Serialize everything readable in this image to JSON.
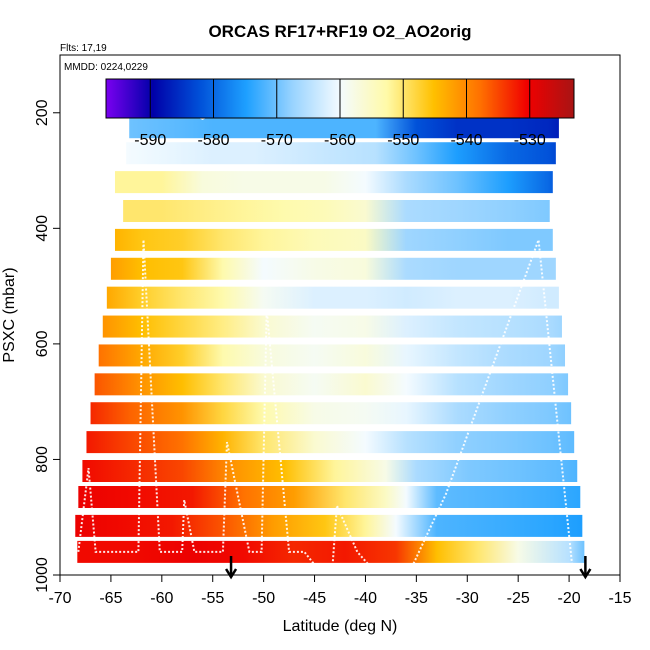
{
  "chart_data": {
    "type": "heatmap",
    "title": "ORCAS RF17+RF19 O2_AO2orig",
    "subtitle_flights": "Flts: 17,19",
    "subtitle_dates": "MMDD: 0224,0229",
    "xlabel": "Latitude (deg N)",
    "ylabel": "PSXC (mbar)",
    "xlim": [
      -70,
      -15
    ],
    "ylim": [
      1000,
      100
    ],
    "x_ticks": [
      -70,
      -65,
      -60,
      -55,
      -50,
      -45,
      -40,
      -35,
      -30,
      -25,
      -20,
      -15
    ],
    "y_ticks": [
      200,
      400,
      600,
      800,
      1000
    ],
    "colorbar": {
      "range": [
        -597,
        -523
      ],
      "ticks": [
        -590,
        -580,
        -570,
        -560,
        -550,
        -540,
        -530
      ],
      "colors": [
        "#7a00f0",
        "#0000a8",
        "#0050d8",
        "#1ea0ff",
        "#9ad4ff",
        "#f4fbff",
        "#fffaa8",
        "#ffc000",
        "#ff7000",
        "#f00000",
        "#a81414"
      ]
    },
    "bands": [
      {
        "p": 960,
        "lat_min": -68.3,
        "lat_max": -18.5,
        "values": [
          [
            -68.3,
            -531
          ],
          [
            -63,
            -531
          ],
          [
            -57,
            -530
          ],
          [
            -52,
            -531
          ],
          [
            -47,
            -533
          ],
          [
            -42,
            -532
          ],
          [
            -37,
            -534
          ],
          [
            -33,
            -545
          ],
          [
            -29,
            -550
          ],
          [
            -25,
            -558
          ],
          [
            -20,
            -565
          ],
          [
            -18.5,
            -570
          ]
        ]
      },
      {
        "p": 915,
        "lat_min": -68.5,
        "lat_max": -18.7,
        "values": [
          [
            -68.5,
            -530
          ],
          [
            -64,
            -531
          ],
          [
            -59,
            -532
          ],
          [
            -54,
            -536
          ],
          [
            -49,
            -542
          ],
          [
            -44,
            -546
          ],
          [
            -40,
            -552
          ],
          [
            -37,
            -560
          ],
          [
            -33,
            -572
          ],
          [
            -27,
            -573
          ],
          [
            -22,
            -574
          ],
          [
            -18.7,
            -575
          ]
        ]
      },
      {
        "p": 865,
        "lat_min": -68.2,
        "lat_max": -18.9,
        "values": [
          [
            -68.2,
            -530
          ],
          [
            -63,
            -531
          ],
          [
            -57,
            -532
          ],
          [
            -52,
            -538
          ],
          [
            -47,
            -542
          ],
          [
            -42,
            -550
          ],
          [
            -38,
            -555
          ],
          [
            -36,
            -560
          ],
          [
            -33,
            -571
          ],
          [
            -27,
            -572
          ],
          [
            -22,
            -573
          ],
          [
            -18.9,
            -574
          ]
        ]
      },
      {
        "p": 820,
        "lat_min": -67.8,
        "lat_max": -19.2,
        "values": [
          [
            -67.8,
            -531
          ],
          [
            -63,
            -533
          ],
          [
            -58,
            -535
          ],
          [
            -53,
            -541
          ],
          [
            -48,
            -545
          ],
          [
            -43,
            -552
          ],
          [
            -38,
            -558
          ],
          [
            -35,
            -566
          ],
          [
            -30,
            -569
          ],
          [
            -25,
            -570
          ],
          [
            -21,
            -571
          ],
          [
            -19.2,
            -572
          ]
        ]
      },
      {
        "p": 770,
        "lat_min": -67.4,
        "lat_max": -19.5,
        "values": [
          [
            -67.4,
            -532
          ],
          [
            -63,
            -535
          ],
          [
            -58,
            -538
          ],
          [
            -54,
            -544
          ],
          [
            -50,
            -550
          ],
          [
            -45,
            -556
          ],
          [
            -40,
            -560
          ],
          [
            -36,
            -565
          ],
          [
            -31,
            -568
          ],
          [
            -26,
            -569
          ],
          [
            -22,
            -570
          ],
          [
            -19.5,
            -571
          ]
        ]
      },
      {
        "p": 720,
        "lat_min": -67.0,
        "lat_max": -19.8,
        "values": [
          [
            -67,
            -533
          ],
          [
            -63,
            -537
          ],
          [
            -58,
            -541
          ],
          [
            -54,
            -548
          ],
          [
            -50,
            -553
          ],
          [
            -45,
            -558
          ],
          [
            -40,
            -559
          ],
          [
            -36,
            -561
          ],
          [
            -31,
            -566
          ],
          [
            -26,
            -568
          ],
          [
            -22,
            -569
          ],
          [
            -19.8,
            -570
          ]
        ]
      },
      {
        "p": 670,
        "lat_min": -66.6,
        "lat_max": -20.1,
        "values": [
          [
            -66.6,
            -536
          ],
          [
            -62,
            -541
          ],
          [
            -58,
            -545
          ],
          [
            -54,
            -550
          ],
          [
            -50,
            -556
          ],
          [
            -45,
            -559
          ],
          [
            -40,
            -556
          ],
          [
            -36,
            -560
          ],
          [
            -31,
            -565
          ],
          [
            -26,
            -567
          ],
          [
            -22,
            -568
          ],
          [
            -20.1,
            -569
          ]
        ]
      },
      {
        "p": 620,
        "lat_min": -66.2,
        "lat_max": -20.4,
        "values": [
          [
            -66.2,
            -538
          ],
          [
            -62,
            -543
          ],
          [
            -58,
            -547
          ],
          [
            -54,
            -553
          ],
          [
            -50,
            -557
          ],
          [
            -45,
            -559
          ],
          [
            -40,
            -557
          ],
          [
            -36,
            -561
          ],
          [
            -31,
            -564
          ],
          [
            -26,
            -566
          ],
          [
            -22,
            -567
          ],
          [
            -20.4,
            -568
          ]
        ]
      },
      {
        "p": 570,
        "lat_min": -65.8,
        "lat_max": -20.7,
        "values": [
          [
            -65.8,
            -541
          ],
          [
            -62,
            -545
          ],
          [
            -58,
            -548
          ],
          [
            -54,
            -551
          ],
          [
            -50,
            -556
          ],
          [
            -45,
            -559
          ],
          [
            -40,
            -558
          ],
          [
            -36,
            -562
          ],
          [
            -31,
            -564
          ],
          [
            -26,
            -565
          ],
          [
            -22,
            -566
          ],
          [
            -20.7,
            -567
          ]
        ]
      },
      {
        "p": 520,
        "lat_min": -65.4,
        "lat_max": -21.0,
        "values": [
          [
            -65.4,
            -543
          ],
          [
            -62,
            -547
          ],
          [
            -58,
            -550
          ],
          [
            -54,
            -553
          ],
          [
            -50,
            -559
          ],
          [
            -45,
            -562
          ],
          [
            -40,
            -562
          ],
          [
            -36,
            -563
          ],
          [
            -31,
            -562
          ],
          [
            -26,
            -562
          ],
          [
            -22,
            -563
          ],
          [
            -21,
            -563
          ]
        ]
      },
      {
        "p": 470,
        "lat_min": -65.0,
        "lat_max": -21.3,
        "values": [
          [
            -65,
            -542
          ],
          [
            -62,
            -545
          ],
          [
            -58,
            -546
          ],
          [
            -54,
            -553
          ],
          [
            -50,
            -560
          ],
          [
            -45,
            -558
          ],
          [
            -40,
            -557
          ],
          [
            -36,
            -566
          ],
          [
            -31,
            -567
          ],
          [
            -26,
            -567
          ],
          [
            -22,
            -567
          ],
          [
            -21.3,
            -567
          ]
        ]
      },
      {
        "p": 420,
        "lat_min": -64.6,
        "lat_max": -21.6,
        "values": [
          [
            -64.6,
            -544
          ],
          [
            -62,
            -546
          ],
          [
            -58,
            -547
          ],
          [
            -54,
            -550
          ],
          [
            -50,
            -552
          ],
          [
            -45,
            -554
          ],
          [
            -40,
            -555
          ],
          [
            -36,
            -567
          ],
          [
            -31,
            -568
          ],
          [
            -26,
            -569
          ],
          [
            -22,
            -569
          ],
          [
            -21.6,
            -569
          ]
        ]
      },
      {
        "p": 370,
        "lat_min": -63.8,
        "lat_max": -21.9,
        "values": [
          [
            -63.8,
            -550
          ],
          [
            -60,
            -550
          ],
          [
            -56,
            -551
          ],
          [
            -52,
            -552
          ],
          [
            -48,
            -553
          ],
          [
            -44,
            -554
          ],
          [
            -40,
            -556
          ],
          [
            -36,
            -566
          ],
          [
            -31,
            -567
          ],
          [
            -26,
            -568
          ],
          [
            -22,
            -569
          ],
          [
            -21.9,
            -569
          ]
        ]
      },
      {
        "p": 320,
        "lat_min": -64.6,
        "lat_max": -21.6,
        "values": [
          [
            -64.6,
            -552
          ],
          [
            -60,
            -552
          ],
          [
            -56,
            -557
          ],
          [
            -52,
            -558
          ],
          [
            -48,
            -558
          ],
          [
            -44,
            -558
          ],
          [
            -40,
            -560
          ],
          [
            -36,
            -566
          ],
          [
            -31,
            -570
          ],
          [
            -26,
            -575
          ],
          [
            -22,
            -580
          ],
          [
            -21.6,
            -581
          ]
        ]
      },
      {
        "p": 270,
        "lat_min": -63.5,
        "lat_max": -21.3,
        "values": [
          [
            -63.5,
            -560
          ],
          [
            -59,
            -561
          ],
          [
            -55,
            -562
          ],
          [
            -51,
            -562
          ],
          [
            -47,
            -563
          ],
          [
            -43,
            -564
          ],
          [
            -39,
            -565
          ],
          [
            -35,
            -570
          ],
          [
            -31,
            -575
          ],
          [
            -26,
            -580
          ],
          [
            -22,
            -582
          ],
          [
            -21.3,
            -583
          ]
        ]
      },
      {
        "p": 225,
        "lat_min": -63.2,
        "lat_max": -21.0,
        "values": [
          [
            -63.2,
            -570
          ],
          [
            -59,
            -571
          ],
          [
            -55,
            -572
          ],
          [
            -51,
            -572
          ],
          [
            -47,
            -572
          ],
          [
            -43,
            -572
          ],
          [
            -39,
            -572
          ],
          [
            -35,
            -582
          ],
          [
            -31,
            -585
          ],
          [
            -26,
            -585
          ],
          [
            -22,
            -586
          ],
          [
            -21,
            -587
          ]
        ]
      },
      {
        "p": 185,
        "lat_min": -62.5,
        "lat_max": -21.5,
        "values": [
          [
            -62.5,
            -570
          ],
          [
            -58,
            -574
          ],
          [
            -56,
            -580
          ],
          [
            -54,
            -588
          ],
          [
            -52,
            -576
          ],
          [
            -48,
            -573
          ],
          [
            -44,
            -572
          ],
          [
            -40,
            -572
          ],
          [
            -36,
            -575
          ],
          [
            -32,
            -588
          ],
          [
            -27,
            -589
          ],
          [
            -24,
            -590
          ],
          [
            -22,
            -593
          ],
          [
            -21.5,
            -596
          ]
        ]
      }
    ],
    "band_half_heights": [
      22,
      22,
      22,
      22,
      22,
      22,
      22,
      22,
      22,
      22,
      22,
      22,
      22,
      22,
      22,
      22,
      22
    ],
    "track_lat": [
      -68.2,
      -67.2,
      -66.5,
      -65.2,
      -62.3,
      -61.8,
      -60.2,
      -59.5,
      -58,
      -57.8,
      -56.8,
      -55.7,
      -54.5,
      -54,
      -53.6,
      -51.4,
      -50.2,
      -49.7,
      -47.5,
      -46,
      -44.2,
      -43.3,
      -42.8,
      -40.8,
      -38.8,
      -38.2,
      -36.4,
      -35.8,
      -32.1,
      -23,
      -19.6
    ],
    "track_p": [
      960,
      815,
      960,
      960,
      960,
      420,
      960,
      960,
      960,
      870,
      960,
      960,
      960,
      960,
      770,
      960,
      960,
      540,
      960,
      960,
      1000,
      1000,
      880,
      960,
      1000,
      1000,
      1000,
      1000,
      860,
      420,
      1000
    ],
    "track_top": [
      [
        -62.3,
        190
      ],
      [
        -60,
        190
      ],
      [
        -58,
        190
      ],
      [
        -56,
        210
      ],
      [
        -54,
        190
      ],
      [
        -52,
        190
      ],
      [
        -50,
        200
      ],
      [
        -49,
        190
      ],
      [
        -47,
        190
      ],
      [
        -42,
        190
      ],
      [
        -33,
        190
      ],
      [
        -29,
        190
      ],
      [
        -25,
        190
      ],
      [
        -23,
        190
      ]
    ],
    "arrows_lat": [
      -53.2,
      -18.4
    ]
  }
}
